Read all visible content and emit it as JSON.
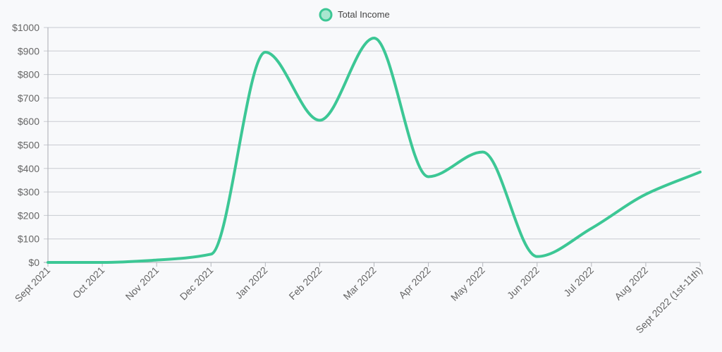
{
  "chart_data": {
    "type": "line",
    "title": "",
    "xlabel": "",
    "ylabel": "",
    "legend_position": "top-center",
    "grid": true,
    "ylim": [
      0,
      1000
    ],
    "y_ticks": [
      "$0",
      "$100",
      "$200",
      "$300",
      "$400",
      "$500",
      "$600",
      "$700",
      "$800",
      "$900",
      "$1000"
    ],
    "categories": [
      "Sept 2021",
      "Oct 2021",
      "Nov 2021",
      "Dec 2021",
      "Jan 2022",
      "Feb 2022",
      "Mar 2022",
      "Apr 2022",
      "May 2022",
      "Jun 2022",
      "Jul 2022",
      "Aug 2022",
      "Sept 2022 (1st-11th)"
    ],
    "series": [
      {
        "name": "Total Income",
        "color": "#3cc795",
        "values": [
          0,
          0,
          10,
          35,
          895,
          605,
          955,
          365,
          470,
          25,
          145,
          290,
          385
        ]
      }
    ]
  }
}
